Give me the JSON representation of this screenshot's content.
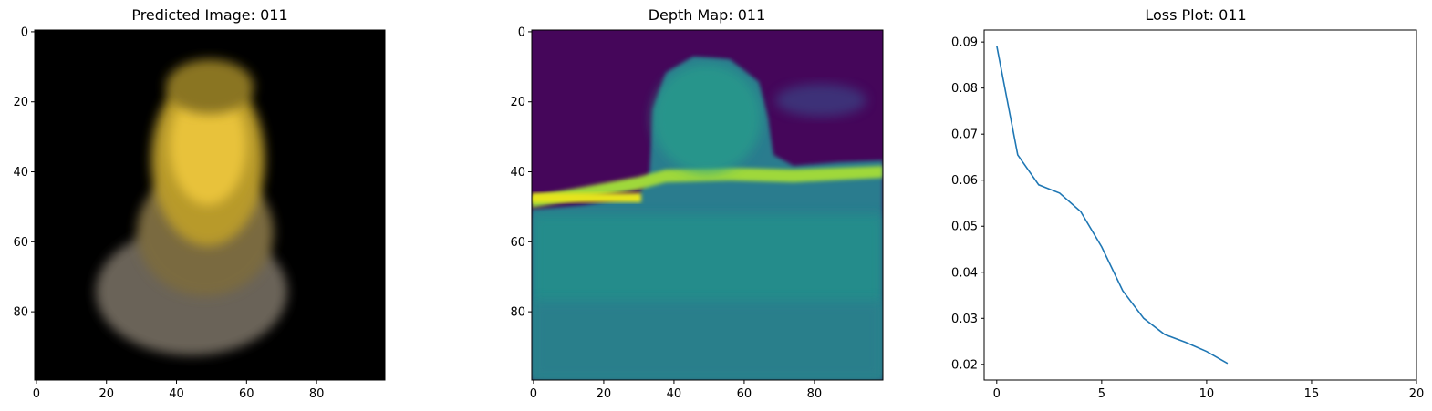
{
  "chart_data": [
    {
      "type": "heatmap",
      "title": "Predicted Image: 011",
      "xlabel": "",
      "ylabel": "",
      "xlim": [
        -0.5,
        99.5
      ],
      "ylim": [
        99.5,
        -0.5
      ],
      "xticks": [
        0,
        20,
        40,
        60,
        80
      ],
      "yticks": [
        0,
        20,
        40,
        60,
        80
      ],
      "grid": false,
      "colormap": "rgb"
    },
    {
      "type": "heatmap",
      "title": "Depth Map: 011",
      "xlabel": "",
      "ylabel": "",
      "xlim": [
        -0.5,
        99.5
      ],
      "ylim": [
        99.5,
        -0.5
      ],
      "xticks": [
        0,
        20,
        40,
        60,
        80
      ],
      "yticks": [
        0,
        20,
        40,
        60,
        80
      ],
      "grid": false,
      "colormap": "viridis"
    },
    {
      "type": "line",
      "title": "Loss Plot: 011",
      "xlabel": "",
      "ylabel": "",
      "xlim": [
        -0.6,
        20
      ],
      "ylim": [
        0.0166,
        0.0926
      ],
      "xticks": [
        0,
        5,
        10,
        15,
        20
      ],
      "yticks": [
        0.02,
        0.03,
        0.04,
        0.05,
        0.06,
        0.07,
        0.08,
        0.09
      ],
      "ytick_labels": [
        "0.02",
        "0.03",
        "0.04",
        "0.05",
        "0.06",
        "0.07",
        "0.08",
        "0.09"
      ],
      "grid": false,
      "series": [
        {
          "color": "#1f77b4",
          "x": [
            0,
            1,
            2,
            3,
            4,
            5,
            6,
            7,
            8,
            9,
            10,
            11
          ],
          "y": [
            0.0892,
            0.0655,
            0.059,
            0.0572,
            0.0532,
            0.0455,
            0.036,
            0.03,
            0.0265,
            0.0248,
            0.0228,
            0.0202
          ]
        }
      ]
    }
  ]
}
